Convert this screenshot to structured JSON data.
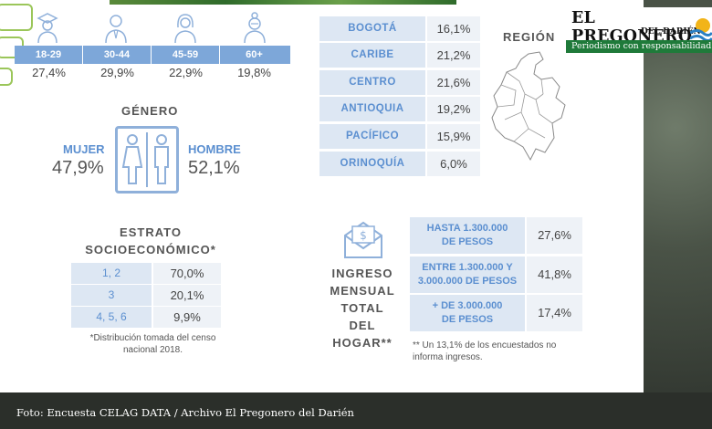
{
  "age": {
    "groups": [
      {
        "label": "18-29",
        "value": "27,4%"
      },
      {
        "label": "30-44",
        "value": "29,9%"
      },
      {
        "label": "45-59",
        "value": "22,9%"
      },
      {
        "label": "60+",
        "value": "19,8%"
      }
    ],
    "bar_color": "#7da7d9"
  },
  "gender": {
    "title": "GÉNERO",
    "female_label": "MUJER",
    "female_value": "47,9%",
    "male_label": "HOMBRE",
    "male_value": "52,1%"
  },
  "region": {
    "title": "REGIÓN",
    "rows": [
      {
        "name": "BOGOTÁ",
        "value": "16,1%"
      },
      {
        "name": "CARIBE",
        "value": "21,2%"
      },
      {
        "name": "CENTRO",
        "value": "21,6%"
      },
      {
        "name": "ANTIOQUIA",
        "value": "19,2%"
      },
      {
        "name": "PACÍFICO",
        "value": "15,9%"
      },
      {
        "name": "ORINOQUÍA",
        "value": "6,0%"
      }
    ]
  },
  "stratum": {
    "title_line1": "ESTRATO",
    "title_line2": "SOCIOECONÓMICO*",
    "rows": [
      {
        "name": "1, 2",
        "value": "70,0%"
      },
      {
        "name": "3",
        "value": "20,1%"
      },
      {
        "name": "4, 5, 6",
        "value": "9,9%"
      }
    ],
    "note_line1": "*Distribución tomada del censo",
    "note_line2": "nacional 2018."
  },
  "income": {
    "title_line1": "INGRESO",
    "title_line2": "MENSUAL",
    "title_line3": "TOTAL DEL",
    "title_line4": "HOGAR**",
    "rows": [
      {
        "line1": "HASTA 1.300.000",
        "line2": "DE PESOS",
        "value": "27,6%"
      },
      {
        "line1": "ENTRE 1.300.000 Y",
        "line2": "3.000.000 DE PESOS",
        "value": "41,8%"
      },
      {
        "line1": "+ DE 3.000.000",
        "line2": "DE PESOS",
        "value": "17,4%"
      }
    ],
    "note_line1": "** Un 13,1% de los encuestados no",
    "note_line2": "informa ingresos."
  },
  "logo": {
    "name": "EL PREGONERO",
    "sub": "DEL DARIÉN",
    "tagline": "Periodismo con responsabilidad"
  },
  "footer": {
    "caption": "Foto: Encuesta CELAG DATA  / Archivo El Pregonero del Darién"
  },
  "colors": {
    "accent_blue": "#5b8fd0",
    "cell_blue": "#dde7f3",
    "brand_green": "#1f7a3a"
  }
}
